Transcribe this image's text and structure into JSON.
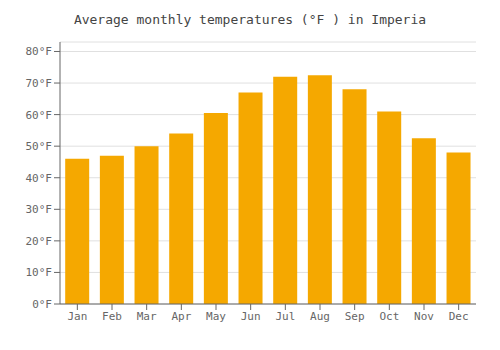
{
  "chart_data": {
    "type": "bar",
    "title": "Average monthly temperatures (°F ) in Imperia",
    "categories": [
      "Jan",
      "Feb",
      "Mar",
      "Apr",
      "May",
      "Jun",
      "Jul",
      "Aug",
      "Sep",
      "Oct",
      "Nov",
      "Dec"
    ],
    "values": [
      46,
      47,
      50,
      54,
      60.5,
      67,
      72,
      72.5,
      68,
      61,
      52.5,
      48
    ],
    "color": "#F5A800",
    "ylim": [
      0,
      83
    ],
    "yticks": [
      {
        "value": 0,
        "label": "0°F"
      },
      {
        "value": 10,
        "label": "10°F"
      },
      {
        "value": 20,
        "label": "20°F"
      },
      {
        "value": 30,
        "label": "30°F"
      },
      {
        "value": 40,
        "label": "40°F"
      },
      {
        "value": 50,
        "label": "50°F"
      },
      {
        "value": 60,
        "label": "60°F"
      },
      {
        "value": 70,
        "label": "70°F"
      },
      {
        "value": 80,
        "label": "80°F"
      }
    ],
    "grid": true
  }
}
